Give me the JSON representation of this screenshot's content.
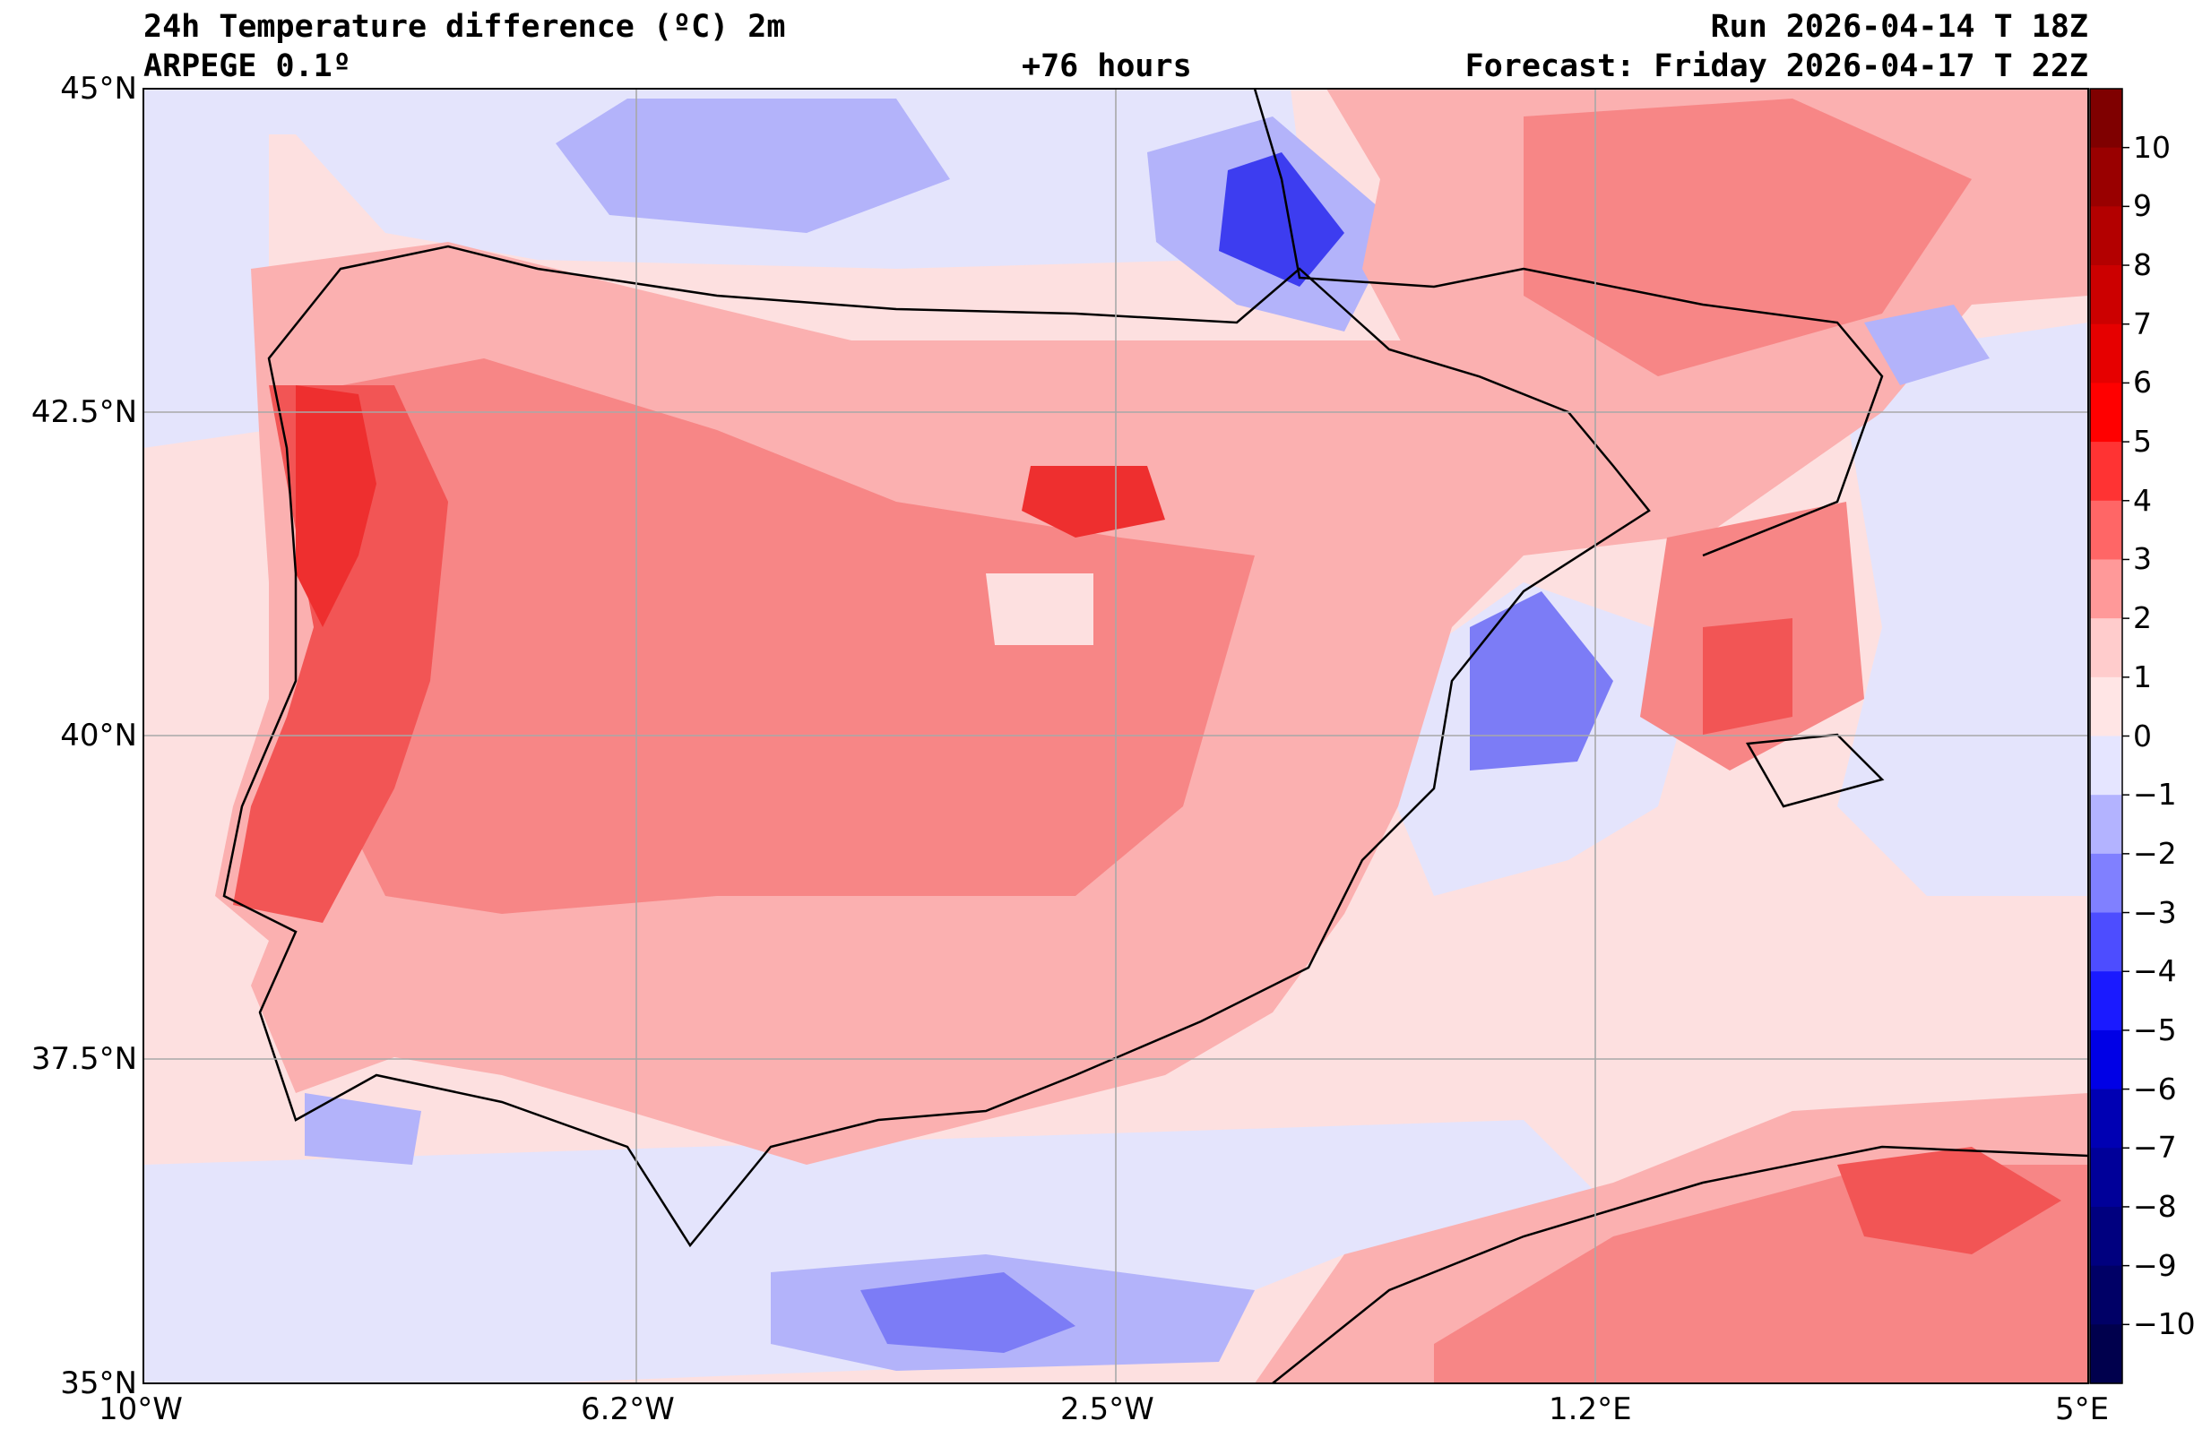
{
  "header": {
    "title": "24h Temperature difference (ºC) 2m",
    "model": "ARPEGE 0.1º",
    "lead": "+76 hours",
    "run": "Run 2026-04-14 T 18Z",
    "forecast": "Forecast: Friday 2026-04-17 T 22Z"
  },
  "map": {
    "lat_labels": [
      "45°N",
      "42.5°N",
      "40°N",
      "37.5°N",
      "35°N"
    ],
    "lon_labels": [
      "10°W",
      "6.2°W",
      "2.5°W",
      "1.2°E",
      "5°E"
    ],
    "lat_range": [
      35,
      45
    ],
    "lon_range": [
      -10,
      5
    ],
    "grid": true
  },
  "colorbar": {
    "levels": [
      "10",
      "9",
      "8",
      "7",
      "6",
      "5",
      "4",
      "3",
      "2",
      "1",
      "0",
      "−1",
      "−2",
      "−3",
      "−4",
      "−5",
      "−6",
      "−7",
      "−8",
      "−9",
      "−10"
    ],
    "colors": [
      "#7f0000",
      "#990000",
      "#b30000",
      "#cc0000",
      "#e60000",
      "#ff0000",
      "#ff3333",
      "#ff6666",
      "#ff9999",
      "#ffcccc",
      "#ffe5e5",
      "#e5e5ff",
      "#b3b3ff",
      "#8080ff",
      "#4d4dff",
      "#1a1aff",
      "#0000e6",
      "#0000b3",
      "#000099",
      "#00007f",
      "#000066",
      "#00004d"
    ]
  },
  "field_colors": {
    "light_pink": "#fde0e0",
    "pink": "#fbb0b0",
    "salmon": "#f78686",
    "red": "#f25555",
    "strong_red": "#ee2f2f",
    "pale_blue": "#e4e4fc",
    "light_blue": "#b3b3fa",
    "blue": "#7c7cf6",
    "strong_blue": "#3d3df0"
  }
}
